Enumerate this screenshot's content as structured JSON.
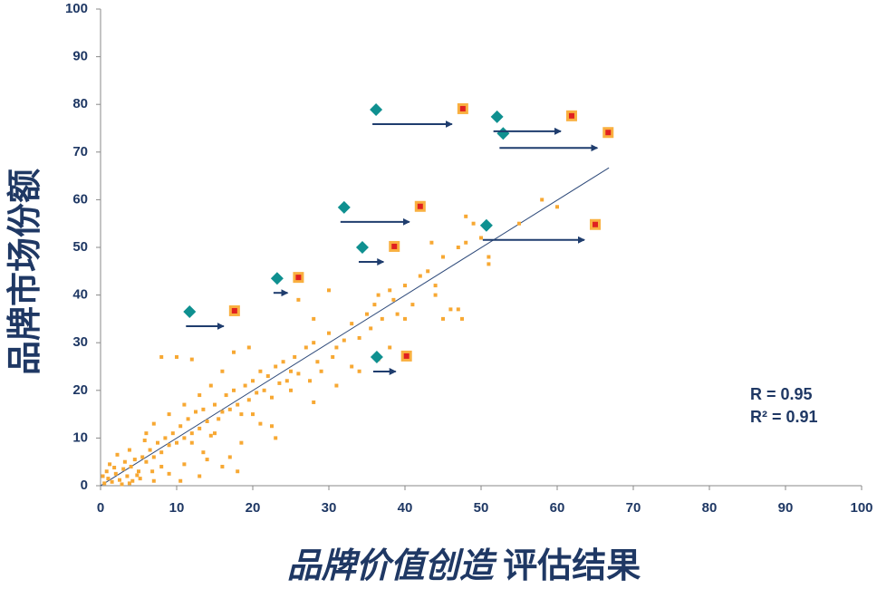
{
  "chart_data": {
    "type": "scatter",
    "y_label": "品牌市场份额",
    "x_label": [
      "品牌价值创造",
      "评估结果"
    ],
    "annotations": [
      "R = 0.95",
      "R² = 0.91"
    ],
    "xlim": [
      0,
      100
    ],
    "ylim": [
      0,
      100
    ],
    "xticks": [
      0,
      10,
      20,
      30,
      40,
      50,
      60,
      70,
      80,
      90,
      100
    ],
    "yticks": [
      0,
      10,
      20,
      30,
      40,
      50,
      60,
      70,
      80,
      90,
      100
    ],
    "grid": false,
    "series": [
      {
        "color": "#f7a833",
        "marker": "dot",
        "x": [
          0.5,
          1,
          1.5,
          2,
          0.8,
          2.5,
          3,
          3.5,
          1.2,
          4,
          4.5,
          5,
          5.5,
          6,
          2.2,
          3.2,
          6.5,
          7,
          7.5,
          8,
          8.5,
          9,
          5.2,
          4.2,
          6.8,
          3.8,
          5.8,
          9.5,
          10,
          10.5,
          11,
          11.5,
          12,
          12.5,
          13,
          13.5,
          14,
          14.5,
          15,
          15.5,
          16,
          16.5,
          17,
          17.5,
          18,
          18.5,
          19,
          19.5,
          20,
          20.5,
          21,
          21.5,
          22,
          22.5,
          23,
          23.5,
          24,
          24.5,
          25,
          25.5,
          26,
          27,
          27.5,
          28,
          28.5,
          29,
          30,
          30.5,
          31,
          32,
          33,
          34,
          35,
          35.5,
          36,
          36.5,
          37,
          38,
          38.5,
          39,
          40,
          41,
          42,
          43,
          44,
          45,
          46,
          47,
          48,
          49,
          50,
          51,
          55,
          58,
          60,
          48,
          51,
          45,
          47.5,
          43.5,
          30,
          26,
          12,
          8,
          10,
          17.5,
          19.5,
          28,
          22.5,
          23,
          17,
          16,
          13,
          10.5,
          18,
          7,
          20,
          15,
          25,
          28,
          31,
          34,
          36.5,
          40,
          44,
          47,
          38,
          33,
          2.8,
          0.3,
          1.8,
          3.8,
          4.8,
          9,
          11,
          8,
          13.5,
          12,
          14,
          18.5,
          21,
          6,
          7,
          9,
          11,
          13,
          14.5,
          16
        ],
        "values": [
          0.5,
          1.5,
          0.8,
          2.5,
          3,
          1.2,
          3.5,
          2,
          4.5,
          4,
          5.5,
          3,
          6,
          5,
          6.5,
          5,
          7.5,
          6,
          9,
          7,
          10,
          8.5,
          1.5,
          1,
          3,
          7.5,
          9.5,
          11,
          9,
          12.5,
          10,
          14,
          11,
          15.5,
          12,
          16,
          13.5,
          10.5,
          17,
          14,
          15.5,
          19,
          16,
          20,
          17,
          15,
          21,
          18,
          22,
          19.5,
          24,
          20,
          23,
          18.5,
          25,
          21.5,
          26,
          22,
          24,
          27,
          23.5,
          29,
          22,
          30,
          26,
          24,
          32,
          27,
          29,
          30.5,
          34,
          31,
          36,
          33,
          38,
          40,
          35,
          41,
          39,
          36,
          42,
          38,
          44,
          45,
          42,
          48,
          37,
          50,
          51,
          55,
          52,
          48,
          55,
          60,
          58.5,
          56.5,
          46.5,
          35,
          35,
          51,
          41,
          39,
          26.5,
          27,
          27,
          28,
          29,
          35,
          12.5,
          10,
          6,
          4,
          2,
          1,
          3,
          1,
          15,
          11,
          20,
          17.5,
          21,
          24,
          26.5,
          35,
          40,
          37,
          29,
          25,
          0.3,
          2,
          3.8,
          0.5,
          2.2,
          2.5,
          4.5,
          4,
          7,
          9,
          5.5,
          9,
          13,
          11,
          13,
          15,
          17,
          19,
          21,
          24
        ]
      },
      {
        "color": "#0f9090",
        "marker": "diamond",
        "x": [
          36.2,
          52.1,
          52.9,
          32.0,
          50.7,
          34.4,
          23.2,
          11.7,
          36.3
        ],
        "values": [
          78.9,
          77.4,
          73.9,
          58.4,
          54.6,
          50.0,
          43.5,
          36.5,
          27.0
        ]
      },
      {
        "color": "#f9b040",
        "marker": "square",
        "x": [
          47.6,
          61.9,
          66.7,
          42.0,
          65.0,
          38.6,
          26.0,
          17.6,
          40.2
        ],
        "values": [
          79.1,
          77.6,
          74.1,
          58.6,
          54.8,
          50.2,
          43.7,
          36.7,
          27.2
        ]
      }
    ],
    "arrow_color": "#1f3d6e",
    "trendline": {
      "color": "#2e4a7a",
      "x": [
        0,
        66.8
      ],
      "y": [
        0,
        66.7
      ]
    }
  }
}
